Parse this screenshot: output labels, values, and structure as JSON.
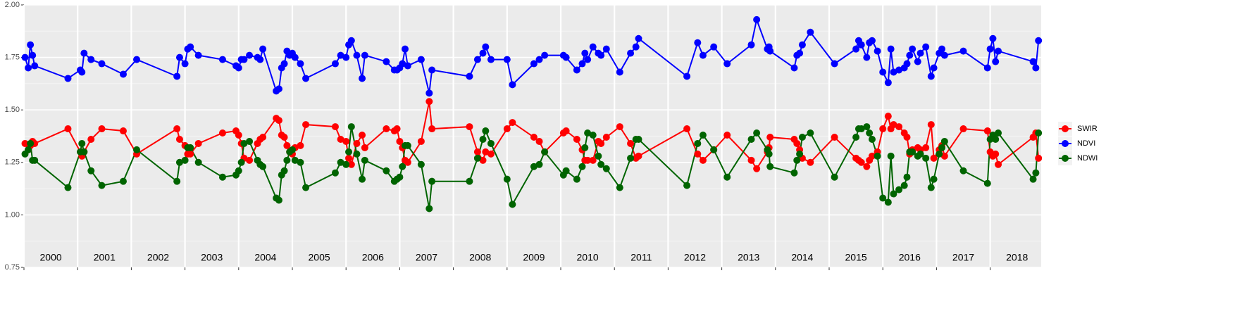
{
  "chart_data": {
    "type": "line",
    "x": [
      2000.02,
      2000.08,
      2000.12,
      2000.16,
      2000.2,
      2000.82,
      2001.05,
      2001.08,
      2001.12,
      2001.25,
      2001.45,
      2001.85,
      2002.1,
      2002.85,
      2002.9,
      2003.0,
      2003.05,
      2003.1,
      2003.25,
      2003.7,
      2003.95,
      2004.0,
      2004.05,
      2004.1,
      2004.2,
      2004.35,
      2004.4,
      2004.45,
      2004.7,
      2004.75,
      2004.8,
      2004.85,
      2004.9,
      2004.95,
      2005.0,
      2005.05,
      2005.15,
      2005.25,
      2005.8,
      2005.9,
      2006.0,
      2006.05,
      2006.1,
      2006.2,
      2006.3,
      2006.35,
      2006.75,
      2006.9,
      2006.95,
      2007.0,
      2007.05,
      2007.1,
      2007.15,
      2007.4,
      2007.55,
      2007.6,
      2008.3,
      2008.45,
      2008.55,
      2008.6,
      2008.7,
      2009.0,
      2009.1,
      2009.5,
      2009.6,
      2009.7,
      2010.05,
      2010.1,
      2010.3,
      2010.4,
      2010.45,
      2010.5,
      2010.6,
      2010.7,
      2010.75,
      2010.85,
      2011.1,
      2011.3,
      2011.4,
      2011.45,
      2012.35,
      2012.55,
      2012.65,
      2012.85,
      2013.1,
      2013.55,
      2013.65,
      2013.85,
      2013.88,
      2013.9,
      2014.35,
      2014.4,
      2014.45,
      2014.5,
      2014.65,
      2015.1,
      2015.5,
      2015.55,
      2015.6,
      2015.7,
      2015.75,
      2015.8,
      2015.9,
      2016.0,
      2016.1,
      2016.15,
      2016.2,
      2016.3,
      2016.4,
      2016.45,
      2016.5,
      2016.55,
      2016.65,
      2016.7,
      2016.8,
      2016.9,
      2016.95,
      2017.05,
      2017.1,
      2017.15,
      2017.5,
      2017.95,
      2018.0,
      2018.05,
      2018.1,
      2018.15,
      2018.8,
      2018.85,
      2018.9
    ],
    "series": [
      {
        "name": "SWIR",
        "color": "#ff0000",
        "values": [
          1.34,
          1.31,
          1.33,
          1.35,
          1.34,
          1.41,
          1.3,
          1.28,
          1.3,
          1.36,
          1.41,
          1.4,
          1.29,
          1.41,
          1.36,
          1.33,
          1.29,
          1.29,
          1.34,
          1.39,
          1.4,
          1.38,
          1.34,
          1.27,
          1.26,
          1.34,
          1.36,
          1.37,
          1.46,
          1.45,
          1.38,
          1.37,
          1.33,
          1.3,
          1.29,
          1.32,
          1.33,
          1.43,
          1.42,
          1.36,
          1.35,
          1.27,
          1.24,
          1.34,
          1.38,
          1.32,
          1.41,
          1.4,
          1.41,
          1.35,
          1.32,
          1.26,
          1.25,
          1.35,
          1.54,
          1.41,
          1.42,
          1.3,
          1.26,
          1.3,
          1.29,
          1.41,
          1.44,
          1.37,
          1.35,
          1.3,
          1.39,
          1.4,
          1.36,
          1.31,
          1.26,
          1.26,
          1.26,
          1.35,
          1.34,
          1.37,
          1.42,
          1.34,
          1.27,
          1.28,
          1.41,
          1.29,
          1.26,
          1.31,
          1.38,
          1.26,
          1.22,
          1.3,
          1.32,
          1.37,
          1.36,
          1.34,
          1.31,
          1.27,
          1.25,
          1.37,
          1.27,
          1.26,
          1.25,
          1.23,
          1.26,
          1.28,
          1.3,
          1.41,
          1.47,
          1.41,
          1.43,
          1.42,
          1.39,
          1.37,
          1.29,
          1.31,
          1.32,
          1.31,
          1.32,
          1.43,
          1.27,
          1.31,
          1.33,
          1.28,
          1.41,
          1.4,
          1.3,
          1.28,
          1.29,
          1.24,
          1.37,
          1.39,
          1.27
        ]
      },
      {
        "name": "NDVI",
        "color": "#0000ff",
        "values": [
          1.75,
          1.7,
          1.81,
          1.76,
          1.71,
          1.65,
          1.69,
          1.68,
          1.77,
          1.74,
          1.72,
          1.67,
          1.74,
          1.66,
          1.75,
          1.72,
          1.79,
          1.8,
          1.76,
          1.74,
          1.71,
          1.7,
          1.74,
          1.74,
          1.76,
          1.75,
          1.74,
          1.79,
          1.59,
          1.6,
          1.7,
          1.72,
          1.78,
          1.76,
          1.77,
          1.75,
          1.72,
          1.65,
          1.72,
          1.76,
          1.75,
          1.81,
          1.83,
          1.76,
          1.65,
          1.76,
          1.73,
          1.69,
          1.69,
          1.7,
          1.72,
          1.79,
          1.71,
          1.74,
          1.58,
          1.69,
          1.66,
          1.74,
          1.77,
          1.8,
          1.74,
          1.74,
          1.62,
          1.72,
          1.74,
          1.76,
          1.76,
          1.75,
          1.69,
          1.72,
          1.77,
          1.74,
          1.8,
          1.77,
          1.76,
          1.79,
          1.68,
          1.77,
          1.8,
          1.84,
          1.66,
          1.82,
          1.76,
          1.8,
          1.72,
          1.81,
          1.93,
          1.79,
          1.8,
          1.78,
          1.7,
          1.76,
          1.77,
          1.81,
          1.87,
          1.72,
          1.79,
          1.83,
          1.81,
          1.75,
          1.82,
          1.83,
          1.78,
          1.68,
          1.63,
          1.79,
          1.68,
          1.69,
          1.7,
          1.72,
          1.76,
          1.79,
          1.73,
          1.77,
          1.8,
          1.66,
          1.7,
          1.77,
          1.79,
          1.76,
          1.78,
          1.7,
          1.79,
          1.84,
          1.73,
          1.78,
          1.73,
          1.7,
          1.83
        ]
      },
      {
        "name": "NDWI",
        "color": "#006400",
        "values": [
          1.29,
          1.31,
          1.34,
          1.26,
          1.26,
          1.13,
          1.3,
          1.34,
          1.3,
          1.21,
          1.14,
          1.16,
          1.31,
          1.16,
          1.25,
          1.26,
          1.32,
          1.32,
          1.25,
          1.18,
          1.19,
          1.21,
          1.25,
          1.34,
          1.35,
          1.26,
          1.24,
          1.23,
          1.08,
          1.07,
          1.19,
          1.21,
          1.26,
          1.3,
          1.31,
          1.26,
          1.25,
          1.13,
          1.2,
          1.25,
          1.24,
          1.3,
          1.42,
          1.29,
          1.17,
          1.26,
          1.21,
          1.16,
          1.17,
          1.18,
          1.23,
          1.33,
          1.33,
          1.24,
          1.03,
          1.16,
          1.16,
          1.27,
          1.36,
          1.4,
          1.34,
          1.17,
          1.05,
          1.23,
          1.24,
          1.3,
          1.19,
          1.21,
          1.17,
          1.23,
          1.32,
          1.39,
          1.38,
          1.28,
          1.24,
          1.22,
          1.13,
          1.27,
          1.36,
          1.36,
          1.14,
          1.34,
          1.38,
          1.31,
          1.18,
          1.36,
          1.39,
          1.31,
          1.29,
          1.23,
          1.2,
          1.26,
          1.29,
          1.37,
          1.39,
          1.18,
          1.37,
          1.41,
          1.41,
          1.42,
          1.39,
          1.36,
          1.28,
          1.08,
          1.06,
          1.28,
          1.1,
          1.12,
          1.14,
          1.18,
          1.3,
          1.3,
          1.28,
          1.29,
          1.27,
          1.13,
          1.17,
          1.29,
          1.32,
          1.35,
          1.21,
          1.15,
          1.36,
          1.38,
          1.36,
          1.39,
          1.17,
          1.2,
          1.39
        ]
      }
    ],
    "xlim": [
      2000,
      2018.95
    ],
    "xticks": [
      {
        "value": 2000,
        "label": "2000"
      },
      {
        "value": 2001,
        "label": "2001"
      },
      {
        "value": 2002,
        "label": "2002"
      },
      {
        "value": 2003,
        "label": "2003"
      },
      {
        "value": 2004,
        "label": "2004"
      },
      {
        "value": 2005,
        "label": "2005"
      },
      {
        "value": 2006,
        "label": "2006"
      },
      {
        "value": 2007,
        "label": "2007"
      },
      {
        "value": 2008,
        "label": "2008"
      },
      {
        "value": 2009,
        "label": "2009"
      },
      {
        "value": 2010,
        "label": "2010"
      },
      {
        "value": 2011,
        "label": "2011"
      },
      {
        "value": 2012,
        "label": "2012"
      },
      {
        "value": 2013,
        "label": "2013"
      },
      {
        "value": 2014,
        "label": "2014"
      },
      {
        "value": 2015,
        "label": "2015"
      },
      {
        "value": 2016,
        "label": "2016"
      },
      {
        "value": 2017,
        "label": "2017"
      },
      {
        "value": 2018,
        "label": "2018"
      }
    ],
    "ylim": [
      0.75,
      2.0
    ],
    "yticks": [
      {
        "value": 0.75,
        "label": "0.75"
      },
      {
        "value": 1,
        "label": "1.00"
      },
      {
        "value": 1.25,
        "label": "1.25"
      },
      {
        "value": 1.5,
        "label": "1.50"
      },
      {
        "value": 1.75,
        "label": "1.75"
      },
      {
        "value": 2,
        "label": "2.00"
      }
    ],
    "grid": true,
    "legend": "right"
  }
}
